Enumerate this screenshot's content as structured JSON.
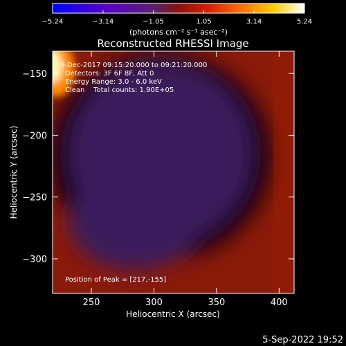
{
  "colorbar": {
    "tick_labels": [
      "-5.24",
      "-3.14",
      "-1.05",
      "1.05",
      "3.14",
      "5.24"
    ],
    "range": [
      -5.24,
      5.24
    ],
    "unit_label": "(photons cm⁻² s⁻¹ asec⁻²)"
  },
  "title": "Reconstructed RHESSI Image",
  "annotations": {
    "time_range": "9-Dec-2017 09:15:20.000 to 09:21:20.000",
    "detectors": "Detectors: 3F 6F 8F, Att 0",
    "energy": "Energy Range: 3.0 - 6.0 keV",
    "method_counts": "Clean    Total counts: 1.90E+05",
    "peak": "Position of Peak = [217,-155]"
  },
  "footer_timestamp": "5-Sep-2022 19:52",
  "chart_data": {
    "type": "heatmap",
    "title": "Reconstructed RHESSI Image",
    "xlabel": "Heliocentric X (arcsec)",
    "ylabel": "Heliocentric Y (arcsec)",
    "xlim": [
      219,
      412
    ],
    "ylim": [
      -328,
      -132
    ],
    "x_ticks": [
      250,
      300,
      350,
      400
    ],
    "y_ticks": [
      -150,
      -200,
      -250,
      -300
    ],
    "peak_position": [
      217,
      -155
    ],
    "colormap": "hot-rainbow"
  }
}
